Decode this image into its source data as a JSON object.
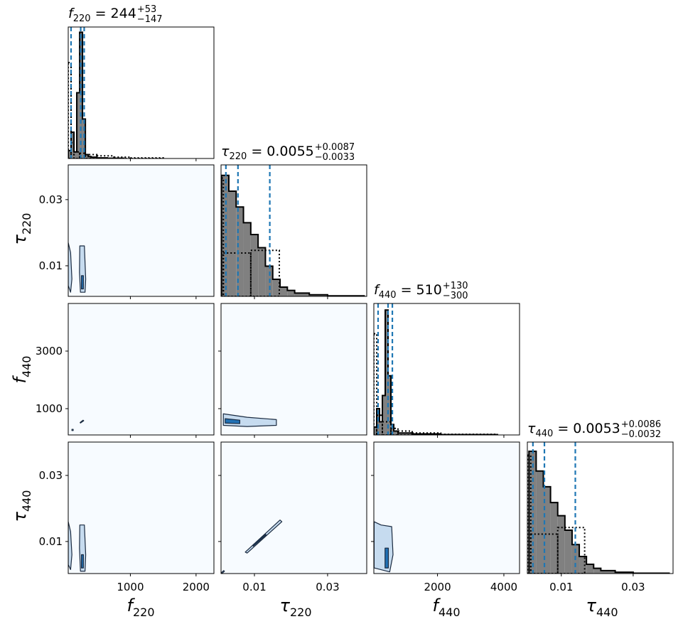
{
  "chart_data": {
    "type": "corner",
    "hist_ylim": [
      0,
      1
    ],
    "hist_fill": "#808080",
    "hist_edge": "#000000",
    "quantile_color": "#1f77b4",
    "background": "#f7fbff",
    "contour_fill": {
      "outer": "#c6dbef",
      "inner": "#2171b5"
    },
    "contour_edge": "#1a2a40",
    "parameters": [
      {
        "symbol": "f",
        "subscript": "220",
        "title": {
          "text": " = 244",
          "upper": "+53",
          "lower": "−147"
        },
        "xlim": [
          54,
          2272
        ],
        "xticks": [
          1000,
          2000
        ],
        "quantiles": [
          97,
          244,
          297
        ],
        "posterior": {
          "bins": [
            54,
            97,
            141,
            184,
            228,
            271,
            315,
            358,
            402,
            489,
            650,
            900
          ],
          "values": [
            0.06,
            0.2,
            0.05,
            0.5,
            0.96,
            0.3,
            0.03,
            0.015,
            0.01,
            0.005,
            0.002
          ]
        },
        "prior": {
          "bins": [
            54,
            97,
            141,
            228,
            315,
            489,
            750,
            1000,
            1500
          ],
          "values": [
            0.73,
            0.12,
            0.05,
            0.04,
            0.03,
            0.02,
            0.01,
            0.005
          ]
        }
      },
      {
        "symbol": "τ",
        "subscript": "220",
        "title": {
          "text": " = 0.0055",
          "upper": "+0.0087",
          "lower": "−0.0033"
        },
        "xlim": [
          0.00087,
          0.0407
        ],
        "xticks": [
          0.01,
          0.03
        ],
        "ylim": [
          0.00075,
          0.0405
        ],
        "yticks": [
          0.01,
          0.03
        ],
        "quantiles": [
          0.0022,
          0.0055,
          0.0142
        ],
        "posterior": {
          "bins": [
            0.001,
            0.003,
            0.005,
            0.007,
            0.009,
            0.011,
            0.013,
            0.015,
            0.017,
            0.019,
            0.021,
            0.025,
            0.03,
            0.04
          ],
          "values": [
            0.92,
            0.8,
            0.68,
            0.56,
            0.47,
            0.37,
            0.23,
            0.13,
            0.07,
            0.045,
            0.025,
            0.012,
            0.004
          ]
        },
        "prior": {
          "bins": [
            0.001,
            0.0015,
            0.009,
            0.0168
          ],
          "values": [
            0.9,
            0.33,
            0.35
          ]
        },
        "joint": [
          {
            "outer": [
              {
                "x": [
                  230,
                  300,
                  320,
                  310,
                  240,
                  225
                ],
                "y": [
                  0.016,
                  0.016,
                  0.006,
                  0.002,
                  0.002,
                  0.008
                ]
              },
              {
                "x": [
                  54,
                  90,
                  110,
                  90,
                  54
                ],
                "y": [
                  0.017,
                  0.014,
                  0.006,
                  0.002,
                  0.004
                ]
              }
            ],
            "inner": [
              {
                "x": [
                  255,
                  285,
                  285,
                  255
                ],
                "y": [
                  0.007,
                  0.007,
                  0.003,
                  0.003
                ]
              }
            ]
          }
        ]
      },
      {
        "symbol": "f",
        "subscript": "440",
        "title": {
          "text": " = 510",
          "upper": "+130",
          "lower": "−300"
        },
        "xlim": [
          82,
          4472
        ],
        "xticks": [
          2000,
          4000
        ],
        "ylim": [
          86,
          4654
        ],
        "yticks": [
          1000,
          3000
        ],
        "quantiles": [
          210,
          510,
          640
        ],
        "posterior": {
          "bins": [
            82,
            168,
            253,
            339,
            425,
            510,
            596,
            682,
            810,
            1238,
            2095,
            3808
          ],
          "values": [
            0.06,
            0.2,
            0.1,
            0.3,
            0.95,
            0.45,
            0.08,
            0.03,
            0.015,
            0.008,
            0.003
          ]
        },
        "prior": {
          "bins": [
            82,
            168,
            339,
            596,
            810,
            1238,
            2095,
            3808
          ],
          "values": [
            0.77,
            0.15,
            0.1,
            0.05,
            0.03,
            0.015,
            0.005
          ]
        },
        "joint": [
          {
            "outer": [
              {
                "x": [
                  240,
                  290,
                  280,
                  235
                ],
                "y": [
                  500,
                  580,
                  600,
                  520
                ]
              },
              {
                "x": [
                  110,
                  130,
                  130,
                  110
                ],
                "y": [
                  240,
                  240,
                  280,
                  280
                ]
              }
            ],
            "inner": []
          },
          {
            "outer": [
              {
                "x": [
                  0.0015,
                  0.008,
                  0.016,
                  0.016,
                  0.008,
                  0.0015
                ],
                "y": [
                  820,
                  700,
                  620,
                  420,
                  380,
                  420
                ]
              }
            ],
            "inner": [
              {
                "x": [
                  0.002,
                  0.006,
                  0.006,
                  0.002
                ],
                "y": [
                  650,
                  600,
                  480,
                  500
                ]
              }
            ]
          }
        ]
      },
      {
        "symbol": "τ",
        "subscript": "440",
        "title": {
          "text": " = 0.0053",
          "upper": "+0.0086",
          "lower": "−0.0032"
        },
        "xlim": [
          0.00055,
          0.0411
        ],
        "xticks": [
          0.01,
          0.03
        ],
        "ylim": [
          0.0003,
          0.0401
        ],
        "yticks": [
          0.01,
          0.03
        ],
        "quantiles": [
          0.0021,
          0.0053,
          0.0139
        ],
        "posterior": {
          "bins": [
            0.001,
            0.003,
            0.005,
            0.007,
            0.009,
            0.011,
            0.013,
            0.015,
            0.017,
            0.019,
            0.021,
            0.025,
            0.03,
            0.04
          ],
          "values": [
            0.93,
            0.78,
            0.66,
            0.54,
            0.44,
            0.33,
            0.22,
            0.13,
            0.07,
            0.04,
            0.022,
            0.01,
            0.003
          ]
        },
        "prior": {
          "bins": [
            0.0006,
            0.0015,
            0.009,
            0.0165
          ],
          "values": [
            0.9,
            0.3,
            0.35
          ]
        },
        "joint": [
          {
            "outer": [
              {
                "x": [
                  230,
                  300,
                  320,
                  310,
                  240,
                  225
                ],
                "y": [
                  0.015,
                  0.015,
                  0.006,
                  0.001,
                  0.001,
                  0.008
                ]
              },
              {
                "x": [
                  54,
                  90,
                  110,
                  90,
                  54
                ],
                "y": [
                  0.016,
                  0.013,
                  0.006,
                  0.0015,
                  0.003
                ]
              }
            ],
            "inner": [
              {
                "x": [
                  255,
                  285,
                  285,
                  255
                ],
                "y": [
                  0.006,
                  0.006,
                  0.002,
                  0.002
                ]
              }
            ]
          },
          {
            "outer": [
              {
                "x": [
                  0.0075,
                  0.017,
                  0.0175,
                  0.008
                ],
                "y": [
                  0.0068,
                  0.0165,
                  0.016,
                  0.0065
                ]
              },
              {
                "x": [
                  0.0009,
                  0.0016,
                  0.0018,
                  0.0011
                ],
                "y": [
                  0.0005,
                  0.0012,
                  0.001,
                  0.0003
                ]
              }
            ],
            "inner": [
              {
                "x": [
                  0.0095,
                  0.013,
                  0.0132,
                  0.0097
                ],
                "y": [
                  0.0088,
                  0.0122,
                  0.012,
                  0.0086
                ]
              }
            ]
          },
          {
            "outer": [
              {
                "x": [
                  90,
                  300,
                  620,
                  660,
                  560,
                  90
                ],
                "y": [
                  0.016,
                  0.015,
                  0.0145,
                  0.006,
                  0.0008,
                  0.002
                ]
              }
            ],
            "inner": [
              {
                "x": [
                  420,
                  520,
                  520,
                  420
                ],
                "y": [
                  0.008,
                  0.008,
                  0.002,
                  0.002
                ]
              }
            ]
          }
        ]
      }
    ]
  }
}
